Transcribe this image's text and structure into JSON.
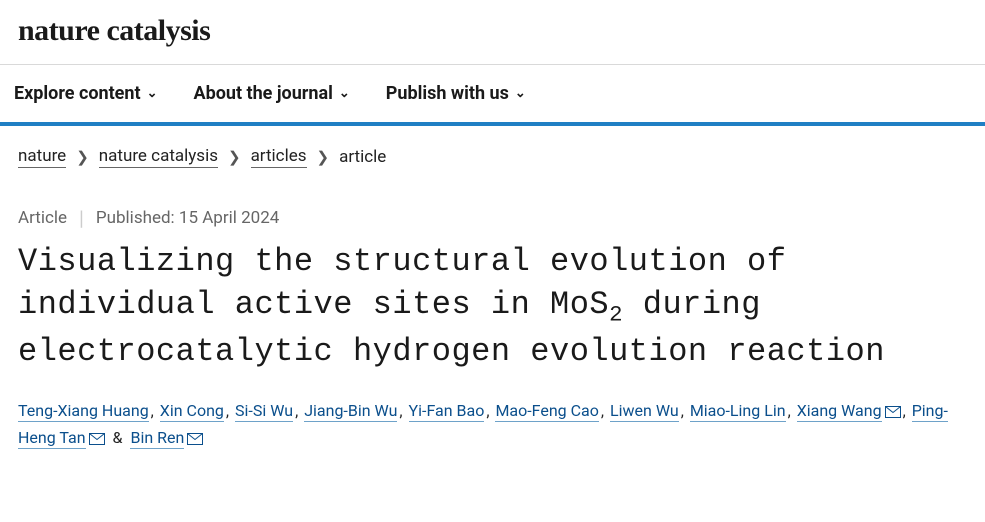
{
  "logo": "nature catalysis",
  "nav": {
    "explore": "Explore content",
    "about": "About the journal",
    "publish": "Publish with us"
  },
  "breadcrumb": {
    "items": [
      "nature",
      "nature catalysis",
      "articles"
    ],
    "current": "article",
    "sep": "❯"
  },
  "meta": {
    "type": "Article",
    "published": "Published: 15 April 2024"
  },
  "title": {
    "pre": "Visualizing the structural evolution of individual active sites in MoS",
    "sub": "2",
    "post": " during electrocatalytic hydrogen evolution reaction"
  },
  "authors": {
    "items": [
      {
        "name": "Teng-Xiang Huang",
        "corresponding": false
      },
      {
        "name": "Xin Cong",
        "corresponding": false
      },
      {
        "name": "Si-Si Wu",
        "corresponding": false
      },
      {
        "name": "Jiang-Bin Wu",
        "corresponding": false
      },
      {
        "name": "Yi-Fan Bao",
        "corresponding": false
      },
      {
        "name": "Mao-Feng Cao",
        "corresponding": false
      },
      {
        "name": "Liwen Wu",
        "corresponding": false
      },
      {
        "name": "Miao-Ling Lin",
        "corresponding": false
      },
      {
        "name": "Xiang Wang",
        "corresponding": true
      },
      {
        "name": "Ping-Heng Tan",
        "corresponding": true
      },
      {
        "name": "Bin Ren",
        "corresponding": true
      }
    ]
  },
  "colors": {
    "accent_blue": "#1f7fc4",
    "link_blue": "#0b4f8c",
    "text": "#222222",
    "meta_gray": "#666666",
    "border_gray": "#d9d9d9"
  }
}
